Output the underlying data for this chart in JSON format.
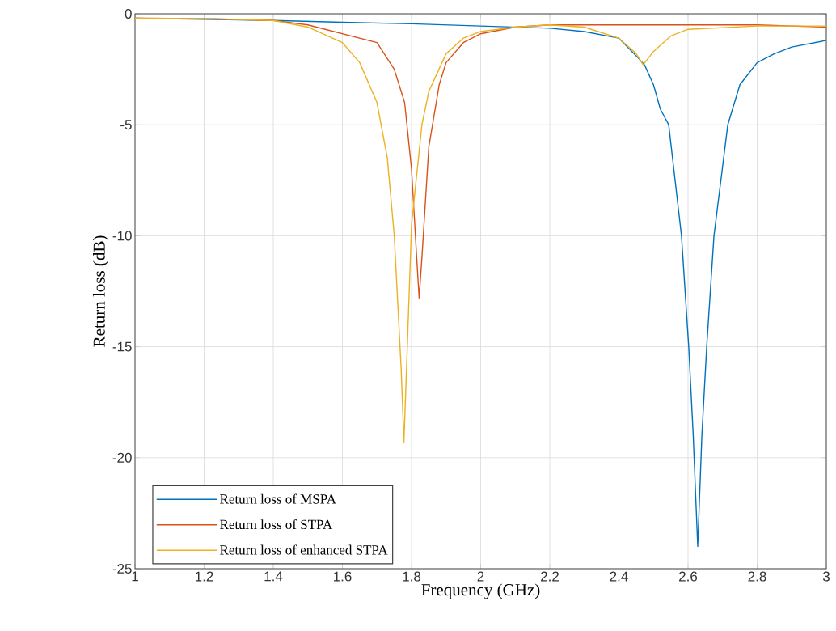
{
  "chart_data": {
    "type": "line",
    "xlabel": "Frequency (GHz)",
    "ylabel": "Return loss (dB)",
    "xlim": [
      1,
      3
    ],
    "ylim": [
      -25,
      0
    ],
    "xticks": [
      1,
      1.2,
      1.4,
      1.6,
      1.8,
      2,
      2.2,
      2.4,
      2.6,
      2.8,
      3
    ],
    "yticks": [
      -25,
      -20,
      -15,
      -10,
      -5,
      0
    ],
    "grid": true,
    "legend": "bottom left",
    "series": [
      {
        "name": "Return loss of MSPA",
        "color": "#0072bd",
        "x": [
          1.0,
          1.2,
          1.4,
          1.6,
          1.8,
          2.0,
          2.2,
          2.3,
          2.4,
          2.45,
          2.474,
          2.5,
          2.52,
          2.544,
          2.581,
          2.602,
          2.615,
          2.628,
          2.64,
          2.654,
          2.675,
          2.715,
          2.75,
          2.8,
          2.85,
          2.9,
          3.0
        ],
        "values": [
          -0.2,
          -0.25,
          -0.3,
          -0.38,
          -0.45,
          -0.55,
          -0.65,
          -0.8,
          -1.1,
          -1.9,
          -2.3,
          -3.2,
          -4.3,
          -5,
          -10,
          -15,
          -19,
          -24,
          -19,
          -15,
          -10,
          -5,
          -3.2,
          -2.2,
          -1.8,
          -1.5,
          -1.2
        ]
      },
      {
        "name": "Return loss of STPA",
        "color": "#d95319",
        "x": [
          1.0,
          1.2,
          1.4,
          1.5,
          1.6,
          1.7,
          1.75,
          1.78,
          1.8,
          1.815,
          1.822,
          1.83,
          1.85,
          1.88,
          1.9,
          1.95,
          2.0,
          2.1,
          2.2,
          2.5,
          2.8,
          3.0
        ],
        "values": [
          -0.2,
          -0.22,
          -0.3,
          -0.5,
          -0.9,
          -1.3,
          -2.5,
          -4,
          -7,
          -11,
          -12.8,
          -11,
          -6,
          -3.2,
          -2.2,
          -1.3,
          -0.9,
          -0.6,
          -0.5,
          -0.5,
          -0.5,
          -0.6
        ]
      },
      {
        "name": "Return loss of enhanced STPA",
        "color": "#edb120",
        "x": [
          1.0,
          1.2,
          1.4,
          1.5,
          1.6,
          1.65,
          1.7,
          1.73,
          1.75,
          1.77,
          1.778,
          1.79,
          1.8,
          1.83,
          1.85,
          1.9,
          1.95,
          2.0,
          2.1,
          2.2,
          2.3,
          2.4,
          2.45,
          2.47,
          2.5,
          2.55,
          2.6,
          2.8,
          3.0
        ],
        "values": [
          -0.2,
          -0.22,
          -0.3,
          -0.6,
          -1.3,
          -2.2,
          -4,
          -6.5,
          -10,
          -16,
          -19.3,
          -14,
          -9.5,
          -5,
          -3.5,
          -1.8,
          -1.1,
          -0.8,
          -0.6,
          -0.5,
          -0.6,
          -1.1,
          -1.8,
          -2.3,
          -1.7,
          -1.0,
          -0.7,
          -0.55,
          -0.55
        ]
      }
    ]
  }
}
